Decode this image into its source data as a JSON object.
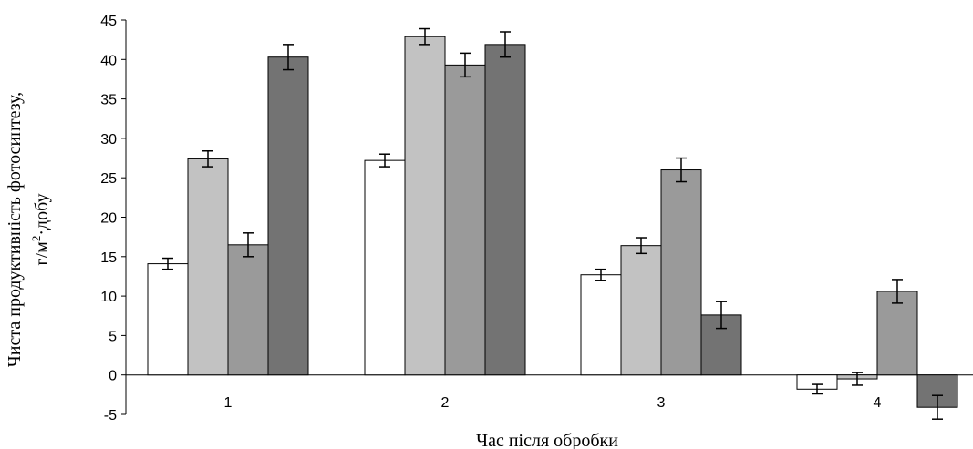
{
  "chart_data": {
    "type": "bar",
    "title": "",
    "xlabel": "Час після обробки",
    "ylabel_line1": "Чиста продуктивність фотосинтезу,",
    "ylabel_line2_pre": "г/м",
    "ylabel_line2_sup": "2",
    "ylabel_line2_post": "·добу",
    "ylim": [
      -5,
      45
    ],
    "yticks": [
      "-5",
      "0",
      "5",
      "10",
      "15",
      "20",
      "25",
      "30",
      "35",
      "40",
      "45"
    ],
    "categories": [
      "1",
      "2",
      "3",
      "4"
    ],
    "series": [
      {
        "values": [
          14.1,
          27.2,
          12.7,
          -1.8
        ],
        "errors": [
          0.7,
          0.8,
          0.7,
          0.6
        ],
        "color": "#ffffff"
      },
      {
        "values": [
          27.4,
          42.9,
          16.4,
          -0.5
        ],
        "errors": [
          1.0,
          1.0,
          1.0,
          0.8
        ],
        "color": "#c2c2c2"
      },
      {
        "values": [
          16.5,
          39.3,
          26.0,
          10.6
        ],
        "errors": [
          1.5,
          1.5,
          1.5,
          1.5
        ],
        "color": "#9a9a9a"
      },
      {
        "values": [
          40.3,
          41.9,
          7.6,
          -4.1
        ],
        "errors": [
          1.6,
          1.6,
          1.7,
          1.5
        ],
        "color": "#737373"
      }
    ],
    "grid": false,
    "legend": "none"
  }
}
